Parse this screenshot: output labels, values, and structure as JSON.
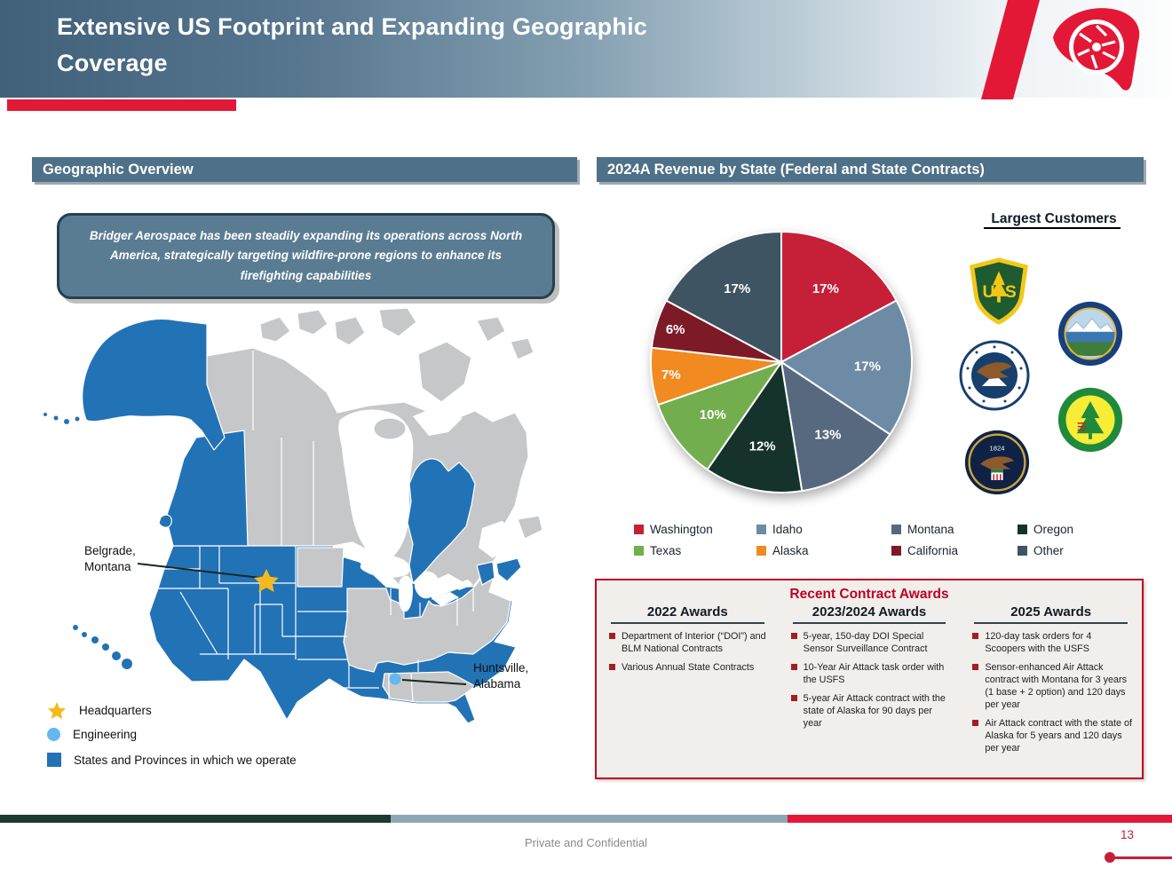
{
  "header": {
    "title_line1": "Extensive US Footprint and Expanding Geographic",
    "title_line2": "Coverage"
  },
  "left": {
    "section_title": "Geographic Overview",
    "callout": "Bridger Aerospace has been steadily expanding its operations across North America, strategically targeting wildfire-prone regions to enhance its firefighting capabilities",
    "map": {
      "hq_label_line1": "Belgrade,",
      "hq_label_line2": "Montana",
      "eng_label_line1": "Huntsville,",
      "eng_label_line2": "Alabama",
      "legend": [
        {
          "marker": "star",
          "label": "Headquarters"
        },
        {
          "marker": "circle",
          "label": "Engineering"
        },
        {
          "marker": "square",
          "label": "States and Provinces in which we operate"
        }
      ],
      "colors": {
        "operating": "#2272b6",
        "other_land": "#c6c7c9",
        "hq_star": "#f5b91d",
        "engineering": "#63b8f0"
      }
    }
  },
  "right": {
    "section_title": "2024A Revenue by State (Federal and State Contracts)",
    "largest_customers": {
      "title": "Largest Customers",
      "names": [
        "US Forest Service - Department of Agriculture",
        "The Seal of the State of Alaska",
        "Washington Department of Natural Resources",
        "Nevada Division of Forestry - Range Forest Watershed Protection",
        "U.S. Department of the Interior - Bureau of Indian Affairs - 1824"
      ]
    },
    "awards": {
      "title": "Recent Contract Awards",
      "columns": [
        {
          "heading": "2022 Awards",
          "items": [
            "Department of Interior (“DOI”) and BLM National Contracts",
            "Various Annual State Contracts"
          ]
        },
        {
          "heading": "2023/2024  Awards",
          "items": [
            "5-year, 150-day DOI Special Sensor Surveillance Contract",
            "10-Year Air Attack task order with the USFS",
            "5-year Air Attack contract with the state of Alaska for 90 days per year"
          ]
        },
        {
          "heading": "2025 Awards",
          "items": [
            "120-day task orders for 4 Scoopers with the USFS",
            "Sensor-enhanced Air Attack contract with Montana for 3 years (1 base + 2 option) and 120 days per year",
            "Air Attack contract with the state of Alaska for 5 years and 120 days per year"
          ]
        }
      ]
    }
  },
  "chart_data": {
    "type": "pie",
    "title": "2024A Revenue by State (Federal and State Contracts)",
    "categories": [
      "Washington",
      "Idaho",
      "Montana",
      "Oregon",
      "Texas",
      "Alaska",
      "California",
      "Other"
    ],
    "values": [
      17,
      17,
      13,
      12,
      10,
      7,
      6,
      17
    ],
    "labels": [
      "17%",
      "17%",
      "13%",
      "12%",
      "10%",
      "7%",
      "6%",
      "17%"
    ],
    "unit": "%",
    "colors": [
      "#c62038",
      "#6d8ba4",
      "#57697f",
      "#15332b",
      "#72ae4d",
      "#f18b21",
      "#7c1b27",
      "#3e5463"
    ],
    "start_angle_deg": -90,
    "direction": "clockwise",
    "legend_position": "bottom"
  },
  "footer": {
    "confidential": "Private and Confidential",
    "page_number": "13"
  }
}
